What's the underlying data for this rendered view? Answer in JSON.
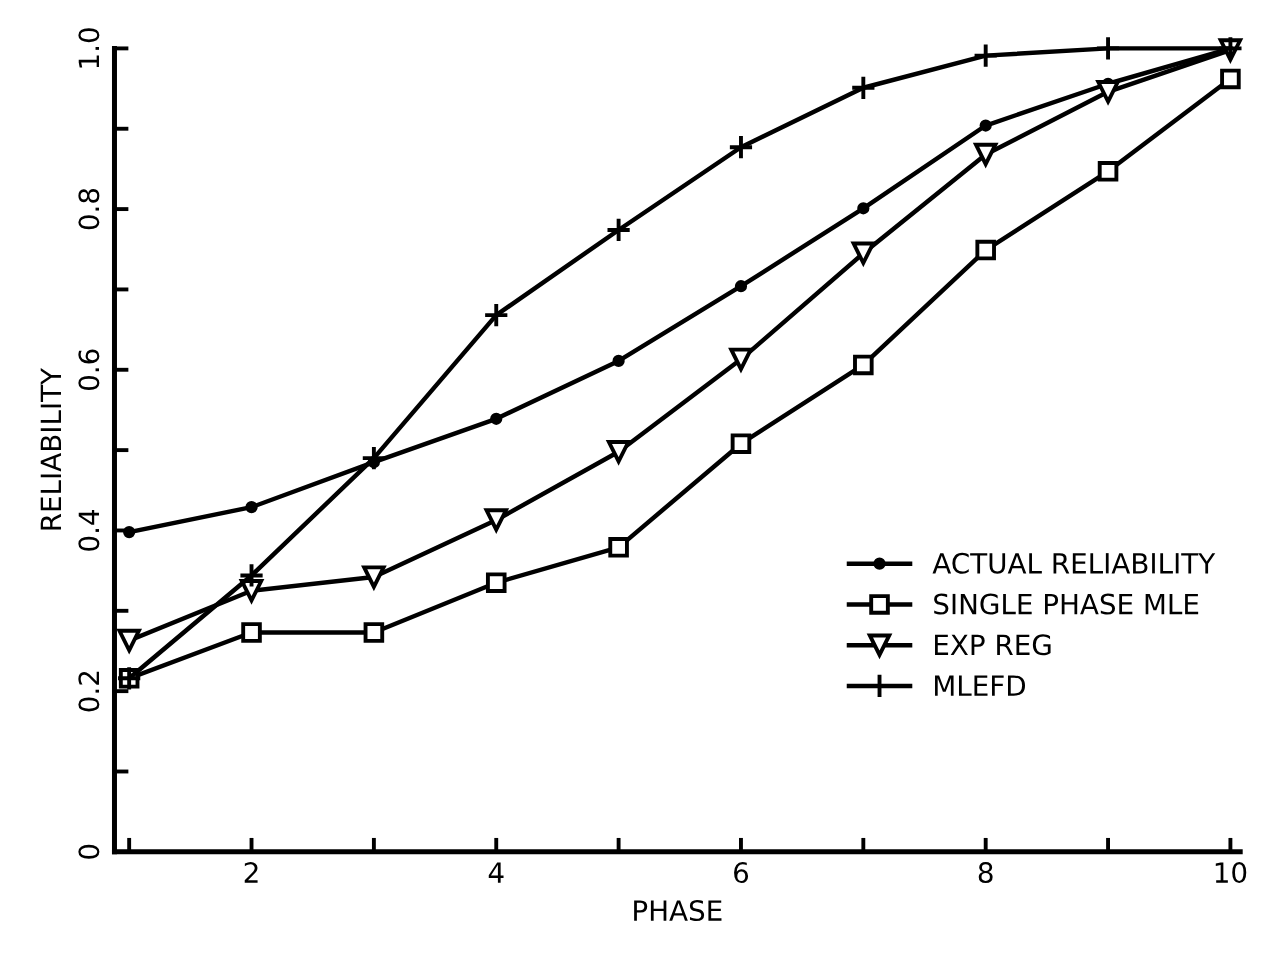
{
  "chart_data": {
    "type": "line",
    "xlabel": "PHASE",
    "ylabel": "RELIABILITY",
    "x": [
      1,
      2,
      3,
      4,
      5,
      6,
      7,
      8,
      9,
      10
    ],
    "series": [
      {
        "name": "ACTUAL RELIABILITY",
        "color": "#000000",
        "marker": "circle",
        "values": [
          0.398,
          0.429,
          0.485,
          0.539,
          0.611,
          0.704,
          0.801,
          0.904,
          0.956,
          1.0
        ]
      },
      {
        "name": "SINGLE PHASE MLE",
        "color": "#000000",
        "marker": "square",
        "values": [
          0.216,
          0.273,
          0.273,
          0.335,
          0.379,
          0.508,
          0.606,
          0.749,
          0.847,
          0.962
        ]
      },
      {
        "name": "EXP REG",
        "color": "#000000",
        "marker": "triangle",
        "values": [
          0.263,
          0.325,
          0.342,
          0.413,
          0.498,
          0.613,
          0.745,
          0.868,
          0.946,
          0.998
        ]
      },
      {
        "name": "MLEFD",
        "color": "#000000",
        "marker": "cross",
        "values": [
          0.216,
          0.344,
          0.49,
          0.668,
          0.774,
          0.877,
          0.951,
          0.991,
          1.0,
          1.0
        ]
      }
    ],
    "xlim": [
      0.88,
      10.08
    ],
    "ylim": [
      0,
      1.0
    ],
    "xticks": [
      {
        "value": 1,
        "label": null
      },
      2,
      {
        "value": 3,
        "label": null
      },
      4,
      {
        "value": 5,
        "label": null
      },
      6,
      {
        "value": 7,
        "label": null
      },
      8,
      {
        "value": 9,
        "label": null
      },
      10
    ],
    "yticks": [
      0,
      {
        "value": 0.1,
        "label": null
      },
      0.2,
      {
        "value": 0.3,
        "label": null
      },
      0.4,
      {
        "value": 0.5,
        "label": null
      },
      0.6,
      {
        "value": 0.7,
        "label": null
      },
      0.8,
      {
        "value": 0.9,
        "label": null
      },
      {
        "value": 1.0,
        "label": "1.0"
      }
    ],
    "grid": false,
    "legend": "right",
    "line_style": "solid"
  }
}
